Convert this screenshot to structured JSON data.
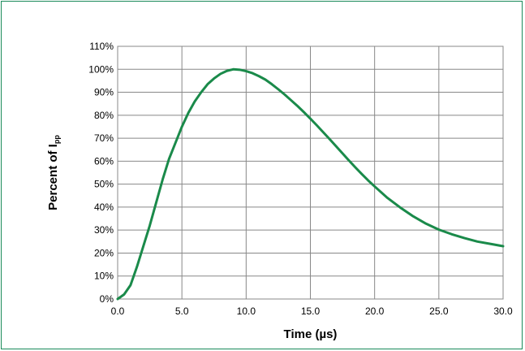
{
  "chart_data": {
    "type": "line",
    "xlabel": "Time (µs)",
    "ylabel_main": "Percent of I",
    "ylabel_sub": "pp",
    "xlim": [
      0,
      30
    ],
    "ylim": [
      0,
      110
    ],
    "x_ticks": [
      0,
      5,
      10,
      15,
      20,
      25,
      30
    ],
    "x_tick_labels": [
      "0.0",
      "5.0",
      "10.0",
      "15.0",
      "20.0",
      "25.0",
      "30.0"
    ],
    "y_ticks": [
      0,
      10,
      20,
      30,
      40,
      50,
      60,
      70,
      80,
      90,
      100,
      110
    ],
    "y_tick_labels": [
      "0%",
      "10%",
      "20%",
      "30%",
      "40%",
      "50%",
      "60%",
      "70%",
      "80%",
      "90%",
      "100%",
      "110%"
    ],
    "grid": true,
    "series": [
      {
        "color": "#1a8a4a",
        "x": [
          0,
          0.5,
          1,
          1.5,
          2,
          2.5,
          3,
          3.5,
          4,
          4.5,
          5,
          5.5,
          6,
          6.5,
          7,
          7.5,
          8,
          8.5,
          9,
          9.5,
          10,
          10.5,
          11,
          11.5,
          12,
          12.5,
          13,
          13.5,
          14,
          14.5,
          15,
          15.5,
          16,
          16.5,
          17,
          17.5,
          18,
          18.5,
          19,
          19.5,
          20,
          21,
          22,
          23,
          24,
          25,
          26,
          27,
          28,
          29,
          30
        ],
        "y": [
          0,
          2,
          6,
          14,
          23,
          32,
          42,
          52,
          61,
          68,
          75,
          81,
          86,
          90,
          93.5,
          96,
          98,
          99.3,
          100,
          99.8,
          99.2,
          98.3,
          97,
          95.5,
          93.5,
          91.3,
          89,
          86.5,
          84,
          81.3,
          78.5,
          75.6,
          72.6,
          69.6,
          66.5,
          63.4,
          60.3,
          57.3,
          54.4,
          51.6,
          49,
          44,
          39.8,
          36,
          32.8,
          30.2,
          28.2,
          26.5,
          25,
          24,
          23
        ]
      }
    ]
  }
}
